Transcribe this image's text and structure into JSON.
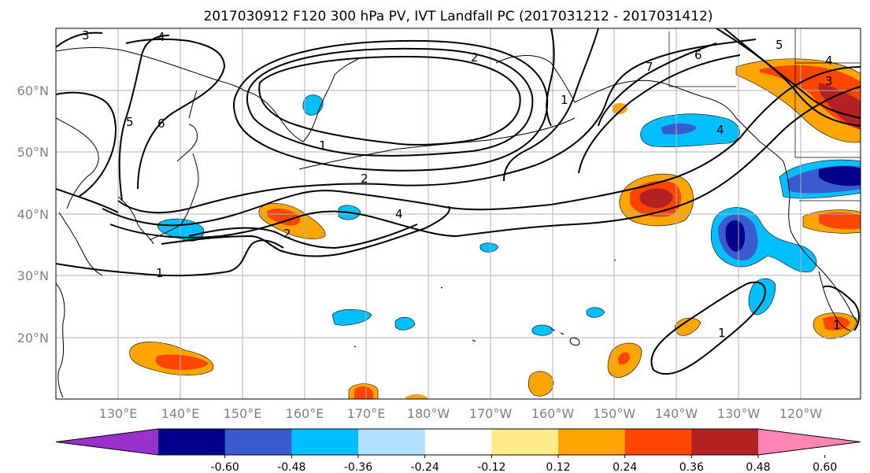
{
  "title": "2017030912 F120 300 hPa PV, IVT Landfall PC (2017031212 - 2017031412)",
  "lat_labels": [
    "60°N",
    "50°N",
    "40°N",
    "30°N",
    "20°N"
  ],
  "lon_labels": [
    "130°E",
    "140°E",
    "150°E",
    "160°E",
    "170°E",
    "180°W",
    "170°W",
    "160°W",
    "150°W",
    "140°W",
    "130°W",
    "120°W"
  ],
  "colorbar": {
    "colors": [
      "#9932cc",
      "#00008b",
      "#3a5bcd",
      "#00bfff",
      "#b0e2ff",
      "#ffffff",
      "#ffec8b",
      "#ffa500",
      "#ff4500",
      "#b22222",
      "#ff86b4"
    ],
    "ticks": [
      "-0.60",
      "-0.48",
      "-0.36",
      "-0.24",
      "-0.12",
      "0.12",
      "0.24",
      "0.36",
      "0.48",
      "0.60"
    ]
  },
  "contour_labels": [
    "3",
    "4",
    "5",
    "6",
    "2",
    "1",
    "2",
    "4",
    "1",
    "2",
    "1",
    "7",
    "6",
    "5",
    "4",
    "3",
    "1",
    "1",
    "4"
  ]
}
